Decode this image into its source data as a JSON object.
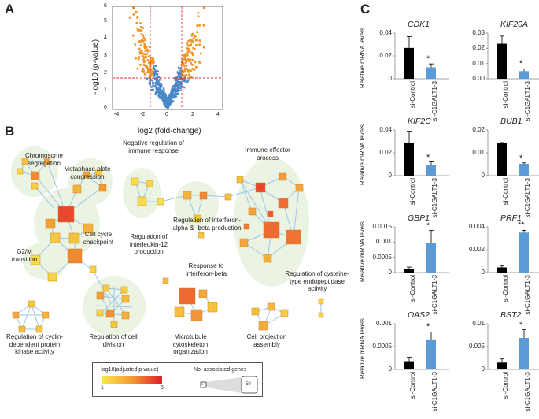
{
  "panels": {
    "a": "A",
    "b": "B",
    "c": "C"
  },
  "volcano": {
    "xlabel": "log2 (fold-change)",
    "ylabel": "-log10 (p-value)",
    "x_ticks": [
      "-4",
      "-2",
      "0",
      "2",
      "4"
    ],
    "y_ticks": [
      "0",
      "1",
      "2",
      "3",
      "4",
      "5",
      "6"
    ],
    "colors": {
      "significant": "#f0932b",
      "non_significant": "#4a89c8",
      "threshold": "#d9312a"
    }
  },
  "network": {
    "labels": [
      "Chromosome segregation",
      "Metaphase plate congression",
      "Negative regulation of immune response",
      "Immune effector process",
      "G2/M transition",
      "Cell cycle checkpoint",
      "Regulation of interleukin-12 production",
      "Regulation of interferon-alpha & -beta production",
      "Response to interferon-beta",
      "Regulation of cysteine-type endopeptidase activity",
      "Regulation of cyclin-dependent protein kinase activity",
      "Regulation of cell division",
      "Microtubule cytoskeleton organization",
      "Cell projection assembly"
    ],
    "legend": {
      "color_title": "-log10(adjusted p-value)",
      "color_min": "1",
      "color_max": "5",
      "size_title": "No. associated genes",
      "size_min": "5",
      "size_max": "50"
    }
  },
  "bar_charts": {
    "ylabel": "Relative mRNA levels",
    "categories": [
      "si-Control",
      "si-C1GALT1-3"
    ],
    "colors": {
      "control": "#000000",
      "knockdown": "#5b9bd5"
    },
    "charts": [
      {
        "gene": "CDK1",
        "ticks": [
          "0",
          "0.02",
          "0.04"
        ],
        "ymax": 0.04,
        "values": [
          0.027,
          0.01
        ],
        "errors": [
          0.01,
          0.003
        ],
        "sig": "*"
      },
      {
        "gene": "KIF20A",
        "ticks": [
          "0.00",
          "0.01",
          "0.02",
          "0.03"
        ],
        "ymax": 0.03,
        "values": [
          0.023,
          0.005
        ],
        "errors": [
          0.005,
          0.0015
        ],
        "sig": "*"
      },
      {
        "gene": "KIF2C",
        "ticks": [
          "0",
          "0.02",
          "0.04"
        ],
        "ymax": 0.04,
        "values": [
          0.029,
          0.009
        ],
        "errors": [
          0.01,
          0.003
        ],
        "sig": "*"
      },
      {
        "gene": "BUB1",
        "ticks": [
          "0",
          "0.01",
          "0.02"
        ],
        "ymax": 0.02,
        "values": [
          0.0142,
          0.0052
        ],
        "errors": [
          0.0003,
          0.0004
        ],
        "sig": "*"
      },
      {
        "gene": "GBP1",
        "ticks": [
          "0",
          "0.0005",
          "0.001",
          "0.0015"
        ],
        "ymax": 0.0015,
        "values": [
          0.00012,
          0.00098
        ],
        "errors": [
          6e-05,
          0.0004
        ],
        "sig": "*"
      },
      {
        "gene": "PRF1",
        "ticks": [
          "0",
          "0.002",
          "0.004"
        ],
        "ymax": 0.004,
        "values": [
          0.00045,
          0.0035
        ],
        "errors": [
          0.00015,
          0.0002
        ],
        "sig": "**"
      },
      {
        "gene": "OAS2",
        "ticks": [
          "0",
          "0.0005",
          "0.001"
        ],
        "ymax": 0.001,
        "values": [
          0.00018,
          0.00064
        ],
        "errors": [
          9e-05,
          0.00018
        ],
        "sig": "*"
      },
      {
        "gene": "BST2",
        "ticks": [
          "0",
          "0.005",
          "0.01"
        ],
        "ymax": 0.01,
        "values": [
          0.0015,
          0.0069
        ],
        "errors": [
          0.0008,
          0.0018
        ],
        "sig": "*"
      }
    ]
  }
}
